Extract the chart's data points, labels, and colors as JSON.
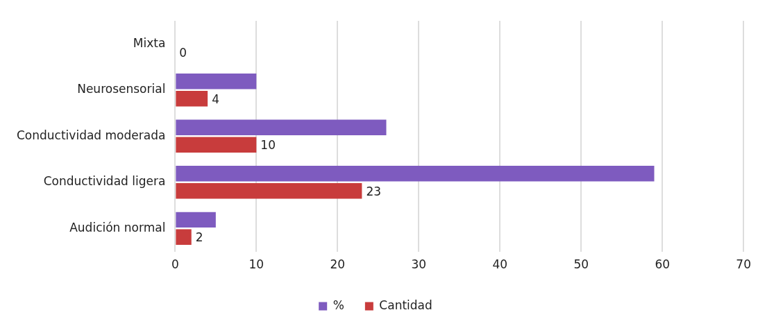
{
  "chart_data": {
    "type": "bar",
    "orientation": "horizontal",
    "categories": [
      "Mixta",
      "Neurosensorial",
      "Conductividad moderada",
      "Conductividad ligera",
      "Audición normal"
    ],
    "series": [
      {
        "name": "%",
        "color": "#7e5bbf",
        "values": [
          0,
          10,
          26,
          59,
          5
        ]
      },
      {
        "name": "Cantidad",
        "color": "#c83c3c",
        "values": [
          0,
          4,
          10,
          23,
          2
        ],
        "value_labels": [
          "0",
          "4",
          "10",
          "23",
          "2"
        ]
      }
    ],
    "xlim": [
      0,
      70
    ],
    "xticks": [
      0,
      10,
      20,
      30,
      40,
      50,
      60,
      70
    ],
    "grid": "x",
    "legend": "bottom"
  }
}
